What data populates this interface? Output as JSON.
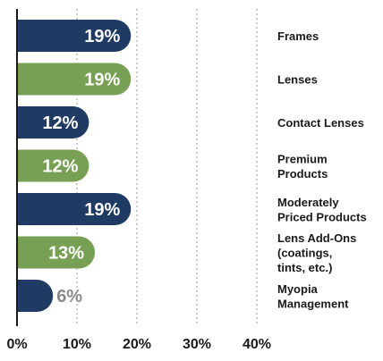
{
  "chart_data": {
    "type": "bar",
    "orientation": "horizontal",
    "categories": [
      [
        "Frames"
      ],
      [
        "Lenses"
      ],
      [
        "Contact Lenses"
      ],
      [
        "Premium",
        "Products"
      ],
      [
        "Moderately",
        "Priced Products"
      ],
      [
        "Lens Add-Ons",
        "(coatings,",
        "tints, etc.)"
      ],
      [
        "Myopia",
        "Management"
      ]
    ],
    "values": [
      19,
      19,
      12,
      12,
      19,
      13,
      6
    ],
    "value_labels": [
      "19%",
      "19%",
      "12%",
      "12%",
      "19%",
      "13%",
      "6%"
    ],
    "xlim": [
      0,
      40
    ],
    "x_ticks": [
      "0%",
      "10%",
      "20%",
      "30%",
      "40%"
    ],
    "grid": "vertical-dashed",
    "colors": {
      "dark": "#1f3b63",
      "green": "#78a055",
      "label_inside": "#ffffff",
      "label_outside": "#8a8a8a"
    },
    "bar_colors": [
      "dark",
      "green",
      "dark",
      "green",
      "dark",
      "green",
      "dark"
    ]
  }
}
